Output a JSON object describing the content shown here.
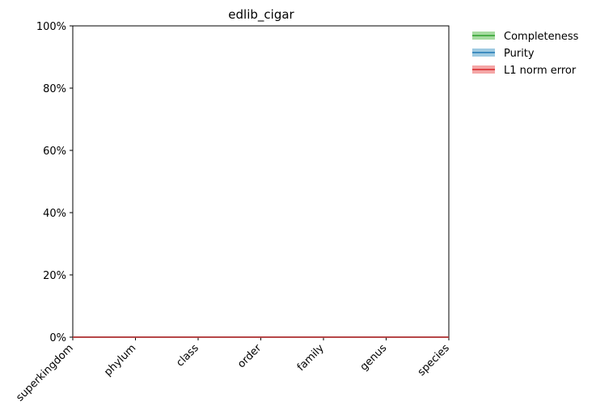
{
  "chart_data": {
    "type": "line",
    "title": "edlib_cigar",
    "xlabel": "",
    "ylabel": "",
    "categories": [
      "superkingdom",
      "phylum",
      "class",
      "order",
      "family",
      "genus",
      "species"
    ],
    "ylim": [
      0,
      100
    ],
    "yticks": [
      0,
      20,
      40,
      60,
      80,
      100
    ],
    "ytick_labels": [
      "0%",
      "20%",
      "40%",
      "60%",
      "80%",
      "100%"
    ],
    "grid": false,
    "legend_position": "outside top-right",
    "series": [
      {
        "name": "Completeness",
        "color": "#2ca02c",
        "band_color": "#a6dba0",
        "values": [
          0,
          0,
          0,
          0,
          0,
          0,
          0
        ]
      },
      {
        "name": "Purity",
        "color": "#1f77b4",
        "band_color": "#9ecae1",
        "values": [
          0,
          0,
          0,
          0,
          0,
          0,
          0
        ]
      },
      {
        "name": "L1 norm error",
        "color": "#d62728",
        "band_color": "#f4a6a6",
        "values": [
          0,
          0,
          0,
          0,
          0,
          0,
          0
        ]
      }
    ]
  }
}
